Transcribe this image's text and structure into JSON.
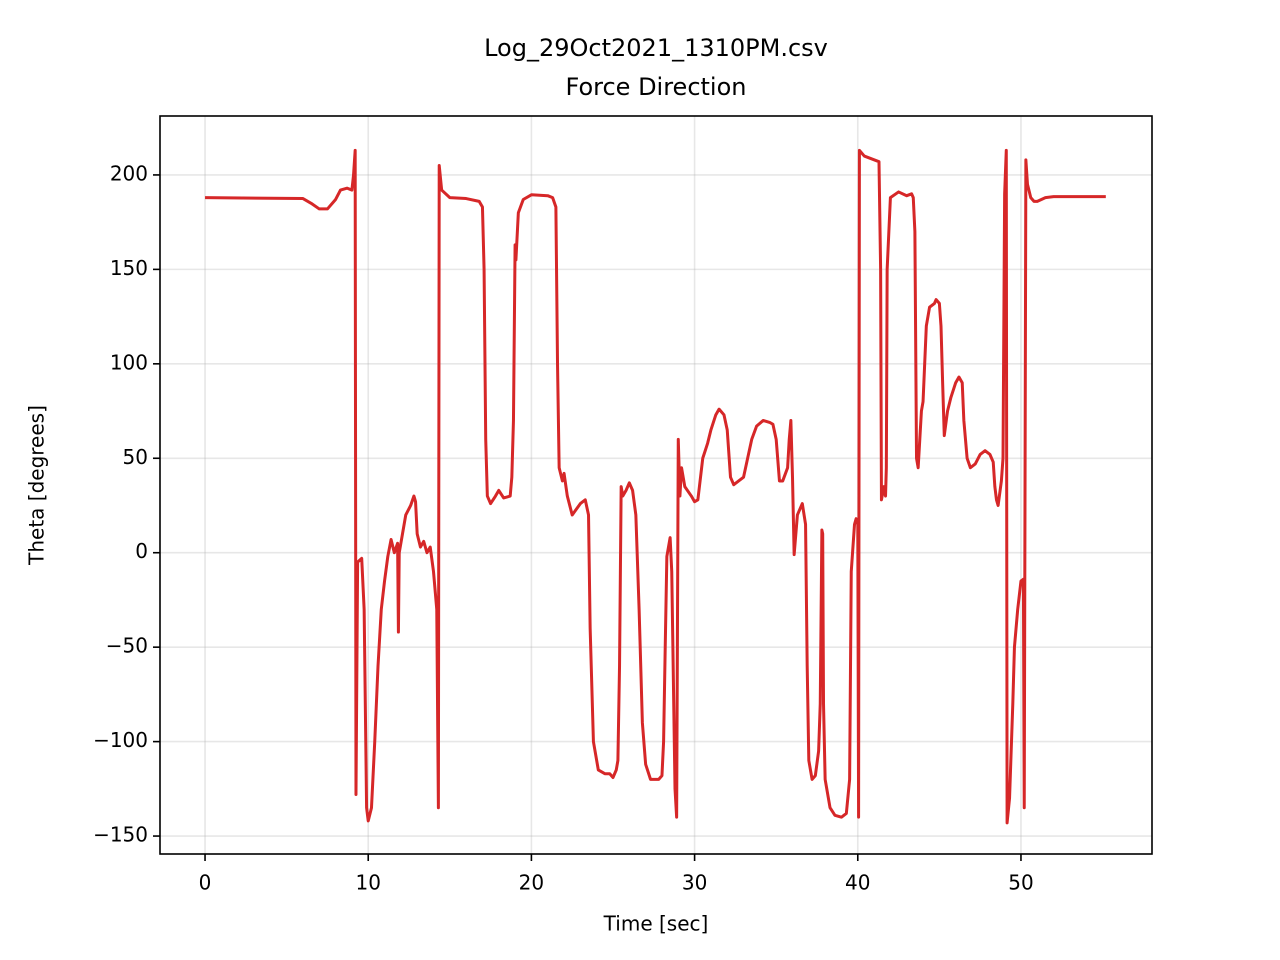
{
  "chart_data": {
    "type": "line",
    "title": "Log_29Oct2021_1310PM.csv",
    "subtitle": "Force Direction",
    "x_label": "Time [sec]",
    "y_label": "Theta [degrees]",
    "grid": true,
    "xlim": [
      -2.76,
      58.03
    ],
    "ylim": [
      -159.5,
      231.2
    ],
    "xticks": [
      0,
      10,
      20,
      30,
      40,
      50
    ],
    "yticks": [
      {
        "value": -150,
        "label": "−150"
      },
      {
        "value": -100,
        "label": "−100"
      },
      {
        "value": -50,
        "label": "−50"
      },
      0,
      50,
      100,
      150,
      200
    ],
    "x": [
      0,
      6,
      6.5,
      7,
      7.5,
      8,
      8.3,
      8.7,
      9,
      9.1,
      9.2,
      9.25,
      9.35,
      9.6,
      9.75,
      9.9,
      10,
      10.2,
      10.4,
      10.6,
      10.8,
      11,
      11.2,
      11.4,
      11.6,
      11.8,
      11.85,
      11.9,
      12.1,
      12.3,
      12.6,
      12.8,
      12.9,
      13,
      13.2,
      13.4,
      13.6,
      13.8,
      14,
      14.2,
      14.3,
      14.35,
      14.5,
      15,
      16,
      16.8,
      17,
      17.1,
      17.2,
      17.3,
      17.5,
      17.8,
      18,
      18.3,
      18.7,
      18.8,
      18.9,
      19,
      19.05,
      19.2,
      19.5,
      20,
      21,
      21.3,
      21.5,
      21.6,
      21.7,
      21.9,
      22,
      22.2,
      22.5,
      23,
      23.3,
      23.5,
      23.6,
      23.8,
      24.1,
      24.5,
      24.8,
      25,
      25.2,
      25.3,
      25.4,
      25.5,
      25.6,
      25.8,
      26,
      26.2,
      26.4,
      26.6,
      26.8,
      27,
      27.3,
      27.8,
      28,
      28.1,
      28.2,
      28.3,
      28.5,
      28.6,
      28.8,
      28.9,
      29,
      29.1,
      29.2,
      29.4,
      29.8,
      30,
      30.2,
      30.5,
      30.8,
      31,
      31.3,
      31.5,
      31.8,
      32,
      32.2,
      32.4,
      32.7,
      33,
      33.2,
      33.5,
      33.8,
      34.2,
      34.6,
      34.8,
      35,
      35.2,
      35.4,
      35.7,
      35.8,
      35.9,
      36,
      36.1,
      36.3,
      36.6,
      36.8,
      36.9,
      37,
      37.2,
      37.4,
      37.6,
      37.7,
      37.8,
      37.85,
      37.9,
      38,
      38.3,
      38.6,
      39,
      39.3,
      39.5,
      39.6,
      39.8,
      39.9,
      40,
      40.05,
      40.1,
      40.4,
      41,
      41.3,
      41.4,
      41.45,
      41.6,
      41.7,
      41.75,
      41.8,
      42,
      42.5,
      43,
      43.3,
      43.4,
      43.5,
      43.6,
      43.7,
      43.8,
      43.9,
      44,
      44.1,
      44.2,
      44.4,
      44.7,
      44.8,
      45,
      45.1,
      45.2,
      45.3,
      45.5,
      45.7,
      46,
      46.2,
      46.4,
      46.5,
      46.7,
      46.9,
      47.2,
      47.5,
      47.8,
      48.1,
      48.3,
      48.4,
      48.5,
      48.6,
      48.8,
      48.9,
      49,
      49.1,
      49.15,
      49.3,
      49.5,
      49.6,
      49.8,
      50,
      50.15,
      50.2,
      50.3,
      50.4,
      50.6,
      50.8,
      51,
      51.5,
      52,
      55.2
    ],
    "series": [
      {
        "color": "#d62728",
        "values": [
          188,
          187.5,
          185,
          182,
          182,
          187,
          192,
          193,
          192,
          200,
          213,
          -128,
          -5,
          -3,
          -30,
          -135,
          -142,
          -135,
          -100,
          -60,
          -30,
          -15,
          -2,
          7,
          0,
          5,
          -42,
          0,
          10,
          20,
          25,
          30,
          27,
          10,
          3,
          6,
          0,
          3,
          -10,
          -30,
          -135,
          205,
          192,
          188,
          187.5,
          186,
          183,
          150,
          60,
          30,
          26,
          30,
          33,
          29,
          30,
          40,
          70,
          163,
          155,
          180,
          187,
          189.5,
          189,
          188,
          183,
          100,
          45,
          38,
          42,
          30,
          20,
          26,
          28,
          20,
          -40,
          -100,
          -115,
          -117,
          -117,
          -119,
          -115,
          -110,
          -60,
          35,
          30,
          33,
          37,
          33,
          20,
          -30,
          -90,
          -112,
          -120,
          -120,
          -118,
          -100,
          -50,
          -2,
          8,
          -10,
          -125,
          -140,
          60,
          30,
          45,
          35,
          30,
          27,
          28,
          50,
          58,
          65,
          73,
          76,
          73,
          65,
          40,
          36,
          38,
          40,
          48,
          60,
          67,
          70,
          69,
          68,
          60,
          38,
          38,
          45,
          60,
          70,
          40,
          -1,
          20,
          26,
          15,
          -60,
          -110,
          -120,
          -118,
          -105,
          -80,
          12,
          10,
          -80,
          -120,
          -135,
          -139,
          -140,
          -138,
          -120,
          -10,
          15,
          18,
          15,
          -140,
          213,
          210,
          208,
          207,
          150,
          28,
          35,
          30,
          45,
          150,
          188,
          191,
          189,
          190,
          188,
          170,
          50,
          45,
          60,
          75,
          80,
          100,
          120,
          130,
          132,
          134,
          132,
          120,
          90,
          62,
          75,
          82,
          90,
          93,
          90,
          70,
          50,
          45,
          47,
          52,
          54,
          52,
          48,
          35,
          28,
          25,
          38,
          50,
          190,
          213,
          -143,
          -130,
          -80,
          -50,
          -30,
          -15,
          -14,
          -135,
          208,
          195,
          188,
          186,
          186,
          188,
          188.5,
          188.5
        ]
      }
    ]
  }
}
